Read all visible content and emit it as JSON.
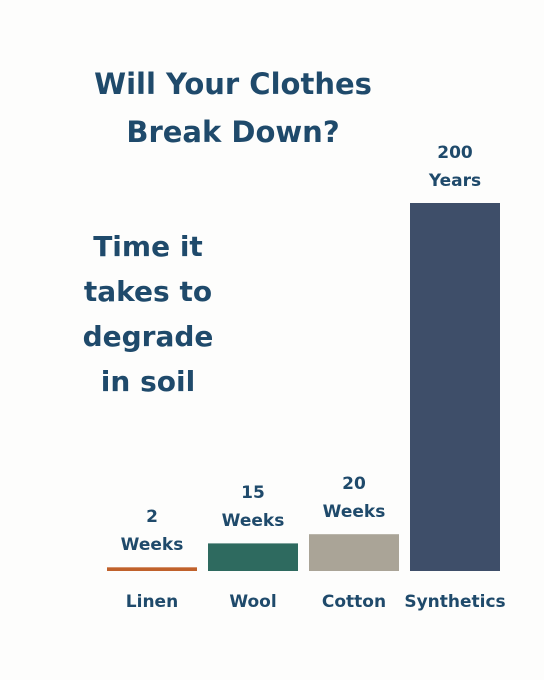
{
  "chart_data": {
    "type": "bar",
    "title": "Will Your Clothes Break Down?",
    "subtitle": "Time it takes to degrade in soil",
    "categories": [
      "Linen",
      "Wool",
      "Cotton",
      "Synthetics"
    ],
    "values": [
      2,
      15,
      20,
      200
    ],
    "value_labels": [
      "2 Weeks",
      "15 Weeks",
      "20 Weeks",
      "200 Years"
    ],
    "colors": [
      "#c0612b",
      "#2e6a5f",
      "#aaa497",
      "#3e4e69"
    ]
  }
}
